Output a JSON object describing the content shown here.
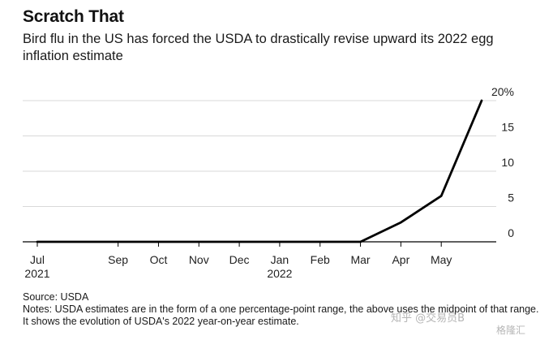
{
  "header": {
    "title": "Scratch That",
    "subtitle": "Bird flu in the US has forced the USDA to drastically revise upward its 2022 egg inflation estimate"
  },
  "footer": {
    "source": "Source: USDA",
    "notes": "Notes: USDA estimates are in the form of a one percentage-point range, the above uses the midpoint of that range. It shows the evolution of USDA's 2022 year-on-year estimate."
  },
  "watermark": {
    "text1": "知乎 @交易员B",
    "text2": "格隆汇"
  },
  "chart_data": {
    "type": "line",
    "title": "Scratch That",
    "line_color": "#000000",
    "grid": true,
    "y_tick_labels": [
      "0",
      "5",
      "10",
      "15",
      "20%"
    ],
    "y_ticks": [
      0,
      5,
      10,
      15,
      20
    ],
    "ylim": [
      0,
      20
    ],
    "x_tick_labels": [
      {
        "label": "Jul",
        "year": "2021"
      },
      {
        "label": "Sep",
        "year": ""
      },
      {
        "label": "Oct",
        "year": ""
      },
      {
        "label": "Nov",
        "year": ""
      },
      {
        "label": "Dec",
        "year": ""
      },
      {
        "label": "Jan",
        "year": "2022"
      },
      {
        "label": "Feb",
        "year": ""
      },
      {
        "label": "Mar",
        "year": ""
      },
      {
        "label": "Apr",
        "year": ""
      },
      {
        "label": "May",
        "year": ""
      }
    ],
    "x_tick_positions": [
      0,
      2,
      3,
      4,
      5,
      6,
      7,
      8,
      9,
      10
    ],
    "xlim": [
      0,
      11.1
    ],
    "series": [
      {
        "x": [
          0,
          1,
          2,
          3,
          4,
          5,
          6,
          7,
          8,
          9,
          10,
          11
        ],
        "values": [
          0,
          0,
          0,
          0,
          0,
          0,
          0,
          0,
          0,
          2.75,
          6.5,
          20
        ]
      }
    ]
  }
}
